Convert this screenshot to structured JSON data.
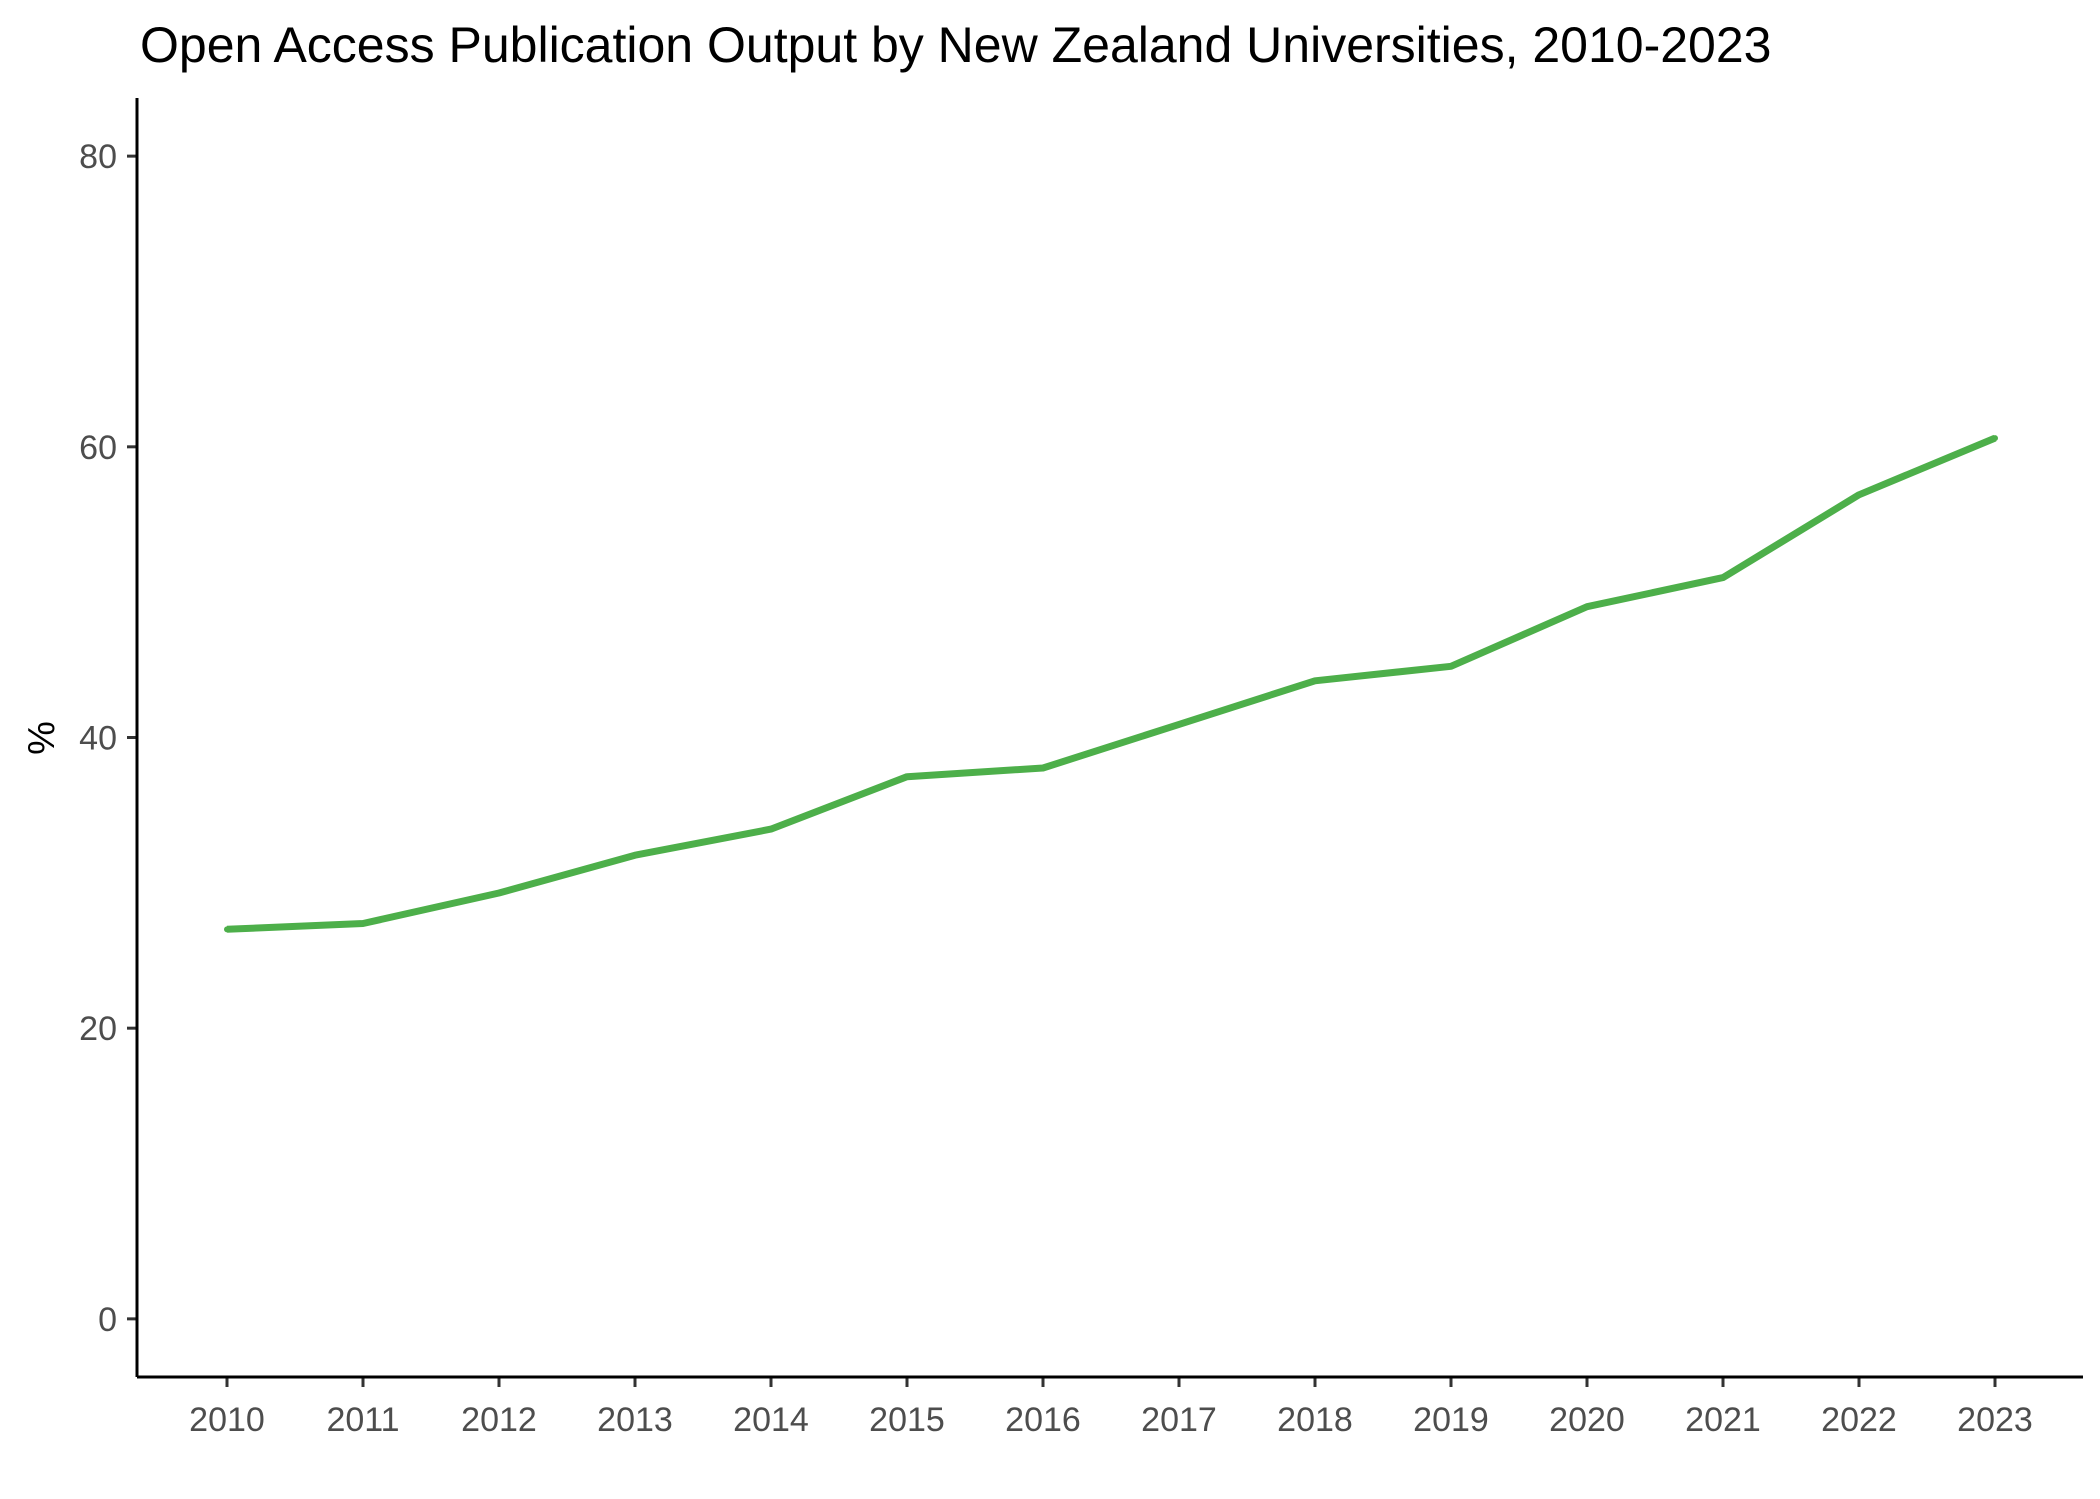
{
  "chart_data": {
    "type": "line",
    "title": "Open Access Publication Output by New Zealand Universities, 2010-2023",
    "xlabel": "",
    "ylabel": "%",
    "x": [
      "2010",
      "2011",
      "2012",
      "2013",
      "2014",
      "2015",
      "2016",
      "2017",
      "2018",
      "2019",
      "2020",
      "2021",
      "2022",
      "2023"
    ],
    "series": [
      {
        "color": "#4daf4a",
        "values": [
          26.8,
          27.2,
          29.3,
          31.9,
          33.7,
          37.3,
          37.9,
          40.9,
          43.9,
          44.9,
          49.0,
          51.0,
          56.7,
          60.6
        ]
      }
    ],
    "yticks": [
      0,
      20,
      40,
      60,
      80
    ],
    "ytick_labels": [
      "0",
      "20",
      "40",
      "60",
      "80"
    ],
    "ylim": [
      -4,
      84
    ],
    "grid": false,
    "legend": "none"
  }
}
